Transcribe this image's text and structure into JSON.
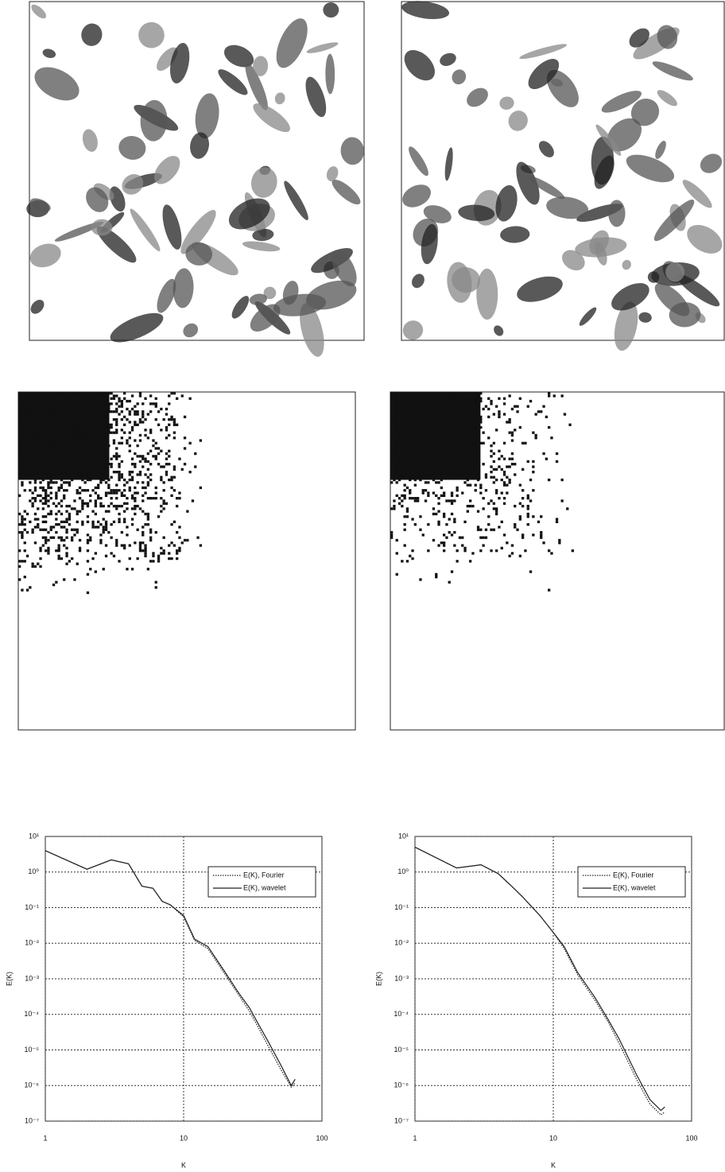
{
  "chart_data": [
    {
      "type": "line",
      "x_label": "K",
      "y_label": "E(K)",
      "log_x": true,
      "log_y": true,
      "grid": true,
      "legend": "upper right",
      "x": [
        1,
        2,
        3,
        4,
        5,
        6,
        7,
        8,
        10,
        12,
        15,
        20,
        25,
        30,
        35,
        40,
        50,
        60,
        64
      ],
      "series": [
        {
          "name": "E(K), Fourier",
          "color": "#222",
          "style": "dotted",
          "values": [
            4,
            1.2,
            2.2,
            1.7,
            0.4,
            0.35,
            0.15,
            0.12,
            0.055,
            0.012,
            0.007,
            0.0013,
            0.00035,
            0.00012,
            4e-05,
            1.5e-05,
            3e-06,
            9e-07,
            1.2e-06
          ]
        },
        {
          "name": "E(K), wavelet",
          "color": "#222",
          "style": "solid",
          "values": [
            4,
            1.2,
            2.2,
            1.7,
            0.4,
            0.35,
            0.15,
            0.12,
            0.06,
            0.013,
            0.008,
            0.0015,
            0.0004,
            0.00015,
            5e-05,
            2e-05,
            4e-06,
            1e-06,
            1.5e-06
          ]
        }
      ],
      "xlim": [
        1,
        100
      ],
      "xticks": [
        1,
        10,
        100
      ],
      "ylim": [
        1e-07,
        10
      ],
      "yticks": [
        {
          "value": 1e-07,
          "label": "10⁻⁷"
        },
        {
          "value": 1e-06,
          "label": "10⁻⁶"
        },
        {
          "value": 1e-05,
          "label": "10⁻⁵"
        },
        {
          "value": 0.0001,
          "label": "10⁻⁴"
        },
        {
          "value": 0.001,
          "label": "10⁻³"
        },
        {
          "value": 0.01,
          "label": "10⁻²"
        },
        {
          "value": 0.1,
          "label": "10⁻¹"
        },
        {
          "value": 1,
          "label": "10⁰"
        },
        {
          "value": 10,
          "label": "10¹"
        }
      ]
    },
    {
      "type": "line",
      "x_label": "K",
      "y_label": "E(K)",
      "log_x": true,
      "log_y": true,
      "grid": true,
      "legend": "upper right",
      "x": [
        1,
        2,
        3,
        4,
        5,
        6,
        8,
        10,
        12,
        15,
        20,
        25,
        30,
        40,
        50,
        60,
        64
      ],
      "series": [
        {
          "name": "E(K), Fourier",
          "color": "#222",
          "style": "dotted",
          "values": [
            5,
            1.3,
            1.6,
            0.9,
            0.4,
            0.2,
            0.06,
            0.02,
            0.007,
            0.0013,
            0.00025,
            6e-05,
            1.5e-05,
            1.5e-06,
            3e-07,
            1.5e-07,
            1.8e-07
          ]
        },
        {
          "name": "E(K), wavelet",
          "color": "#222",
          "style": "solid",
          "values": [
            5,
            1.3,
            1.6,
            0.9,
            0.4,
            0.2,
            0.06,
            0.02,
            0.008,
            0.0015,
            0.0003,
            7e-05,
            2e-05,
            2e-06,
            4e-07,
            2e-07,
            2.5e-07
          ]
        }
      ],
      "xlim": [
        1,
        100
      ],
      "xticks": [
        1,
        10,
        100
      ],
      "ylim": [
        1e-07,
        10
      ],
      "yticks": [
        {
          "value": 1e-07,
          "label": "10⁻⁷"
        },
        {
          "value": 1e-06,
          "label": "10⁻⁶"
        },
        {
          "value": 1e-05,
          "label": "10⁻⁵"
        },
        {
          "value": 0.0001,
          "label": "10⁻⁴"
        },
        {
          "value": 0.001,
          "label": "10⁻³"
        },
        {
          "value": 0.01,
          "label": "10⁻²"
        },
        {
          "value": 0.1,
          "label": "10⁻¹"
        },
        {
          "value": 1,
          "label": "10⁰"
        },
        {
          "value": 10,
          "label": "10¹"
        }
      ]
    }
  ]
}
